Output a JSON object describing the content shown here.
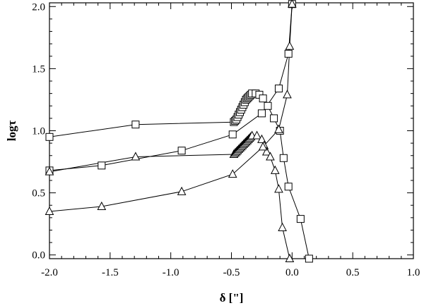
{
  "chart_data": {
    "type": "line",
    "title": "",
    "xlabel": "δ [\"]",
    "ylabel": "logτ",
    "xlim": [
      -2.0,
      1.0
    ],
    "ylim": [
      -0.03,
      2.03
    ],
    "grid": false,
    "legend": "none",
    "x_ticks": [
      -2.0,
      -1.5,
      -1.0,
      -0.5,
      0.0,
      0.5,
      1.0
    ],
    "x_tick_labels": [
      "-2.0",
      "-1.5",
      "-1.0",
      "-0.5",
      "0.0",
      "0.5",
      "1.0"
    ],
    "y_ticks": [
      0.0,
      0.5,
      1.0,
      1.5,
      2.0
    ],
    "y_tick_labels": [
      "0.0",
      "0.5",
      "1.0",
      "1.5",
      "2.0"
    ],
    "series": [
      {
        "marker": "square",
        "points": [
          [
            -2.0,
            0.95
          ],
          [
            -1.29,
            1.05
          ],
          [
            -0.48,
            1.07
          ],
          [
            -0.47,
            1.08
          ],
          [
            -0.46,
            1.09
          ],
          [
            -0.45,
            1.11
          ],
          [
            -0.44,
            1.13
          ],
          [
            -0.43,
            1.15
          ],
          [
            -0.42,
            1.17
          ],
          [
            -0.41,
            1.19
          ],
          [
            -0.4,
            1.21
          ],
          [
            -0.39,
            1.23
          ],
          [
            -0.38,
            1.25
          ],
          [
            -0.37,
            1.26
          ],
          [
            -0.36,
            1.27
          ],
          [
            -0.35,
            1.28
          ],
          [
            -0.34,
            1.29
          ],
          [
            -0.33,
            1.3
          ],
          [
            -0.3,
            1.3
          ],
          [
            -0.27,
            1.29
          ],
          [
            -0.24,
            1.26
          ],
          [
            -0.2,
            1.2
          ],
          [
            -0.15,
            1.1
          ],
          [
            -0.1,
            1.0
          ],
          [
            -0.07,
            0.78
          ],
          [
            -0.03,
            0.55
          ],
          [
            0.07,
            0.29
          ],
          [
            0.14,
            -0.03
          ]
        ]
      },
      {
        "marker": "square",
        "points": [
          [
            -2.0,
            0.68
          ],
          [
            -1.57,
            0.72
          ],
          [
            -0.91,
            0.84
          ],
          [
            -0.49,
            0.97
          ],
          [
            -0.25,
            1.14
          ],
          [
            -0.11,
            1.34
          ],
          [
            -0.03,
            1.62
          ],
          [
            0.0,
            2.02
          ]
        ]
      },
      {
        "marker": "triangle",
        "points": [
          [
            -2.0,
            0.67
          ],
          [
            -1.29,
            0.79
          ],
          [
            -0.48,
            0.81
          ],
          [
            -0.47,
            0.82
          ],
          [
            -0.46,
            0.83
          ],
          [
            -0.45,
            0.84
          ],
          [
            -0.44,
            0.85
          ],
          [
            -0.43,
            0.86
          ],
          [
            -0.42,
            0.87
          ],
          [
            -0.41,
            0.88
          ],
          [
            -0.4,
            0.89
          ],
          [
            -0.39,
            0.9
          ],
          [
            -0.38,
            0.91
          ],
          [
            -0.37,
            0.92
          ],
          [
            -0.36,
            0.93
          ],
          [
            -0.35,
            0.94
          ],
          [
            -0.34,
            0.95
          ],
          [
            -0.33,
            0.96
          ],
          [
            -0.29,
            0.96
          ],
          [
            -0.25,
            0.93
          ],
          [
            -0.23,
            0.88
          ],
          [
            -0.21,
            0.83
          ],
          [
            -0.18,
            0.79
          ],
          [
            -0.14,
            0.68
          ],
          [
            -0.11,
            0.53
          ],
          [
            -0.08,
            0.22
          ],
          [
            -0.02,
            -0.03
          ]
        ]
      },
      {
        "marker": "triangle",
        "points": [
          [
            -2.0,
            0.35
          ],
          [
            -1.57,
            0.39
          ],
          [
            -0.91,
            0.51
          ],
          [
            -0.49,
            0.65
          ],
          [
            -0.24,
            0.87
          ],
          [
            -0.11,
            1.01
          ],
          [
            -0.04,
            1.29
          ],
          [
            -0.02,
            1.68
          ],
          [
            0.0,
            2.02
          ]
        ]
      }
    ]
  }
}
